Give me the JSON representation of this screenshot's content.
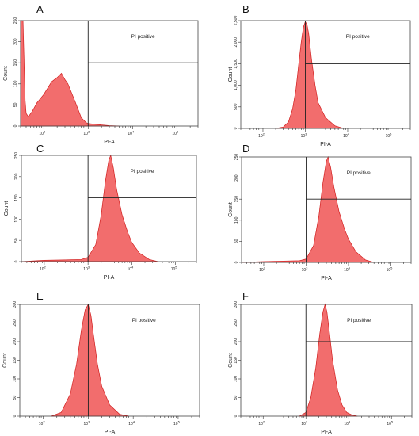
{
  "chart_data": [
    {
      "panel": "A",
      "type": "area",
      "xlabel": "PI-A",
      "ylabel": "Count",
      "xscale": "log",
      "xlim": [
        30,
        300000
      ],
      "ylim": [
        0,
        250
      ],
      "yticks": [
        "0",
        "50",
        "100",
        "150",
        "200",
        "250"
      ],
      "xticks": [
        {
          "base": "10",
          "exp": "2",
          "value": 100
        },
        {
          "base": "10",
          "exp": "3",
          "value": 1000
        },
        {
          "base": "10",
          "exp": "4",
          "value": 10000
        },
        {
          "base": "10",
          "exp": "5",
          "value": 100000
        }
      ],
      "gate_x": 1000,
      "gate_y": 150,
      "region_label": "PI positive",
      "x": [
        30,
        34,
        38,
        40,
        45,
        55,
        70,
        100,
        150,
        200,
        250,
        300,
        350,
        400,
        500,
        700,
        900,
        1000,
        1500,
        3000,
        5000
      ],
      "y": [
        250,
        250,
        60,
        30,
        22,
        35,
        55,
        75,
        105,
        115,
        125,
        110,
        100,
        85,
        60,
        20,
        8,
        6,
        4,
        1,
        0
      ]
    },
    {
      "panel": "B",
      "type": "area",
      "xlabel": "PI-A",
      "ylabel": "Count",
      "xscale": "log",
      "xlim": [
        30,
        300000
      ],
      "ylim": [
        0,
        2500
      ],
      "yticks": [
        "0",
        "500",
        "1,000",
        "1,500",
        "2,000",
        "2,500"
      ],
      "xticks": [
        {
          "base": "10",
          "exp": "2",
          "value": 100
        },
        {
          "base": "10",
          "exp": "3",
          "value": 1000
        },
        {
          "base": "10",
          "exp": "4",
          "value": 10000
        },
        {
          "base": "10",
          "exp": "5",
          "value": 100000
        }
      ],
      "gate_x": 1000,
      "gate_y": 1500,
      "region_label": "PI positive",
      "x": [
        200,
        300,
        400,
        500,
        600,
        700,
        800,
        900,
        1000,
        1100,
        1200,
        1400,
        1700,
        2000,
        3000,
        5000,
        8000
      ],
      "y": [
        0,
        30,
        150,
        450,
        900,
        1500,
        2000,
        2350,
        2480,
        2400,
        2200,
        1600,
        1000,
        600,
        250,
        60,
        0
      ]
    },
    {
      "panel": "C",
      "type": "area",
      "xlabel": "PI-A",
      "ylabel": "Count",
      "xscale": "log",
      "xlim": [
        30,
        300000
      ],
      "ylim": [
        0,
        250
      ],
      "yticks": [
        "0",
        "50",
        "100",
        "150",
        "200",
        "250"
      ],
      "xticks": [
        {
          "base": "10",
          "exp": "2",
          "value": 100
        },
        {
          "base": "10",
          "exp": "3",
          "value": 1000
        },
        {
          "base": "10",
          "exp": "4",
          "value": 10000
        },
        {
          "base": "10",
          "exp": "5",
          "value": 100000
        }
      ],
      "gate_x": 1000,
      "gate_y": 150,
      "region_label": "PI positive",
      "x": [
        30,
        100,
        300,
        700,
        1000,
        1500,
        2000,
        2500,
        3000,
        3300,
        3800,
        4500,
        6000,
        8000,
        10000,
        15000,
        25000,
        40000
      ],
      "y": [
        0,
        3,
        4,
        5,
        10,
        40,
        110,
        190,
        240,
        250,
        220,
        170,
        110,
        70,
        45,
        20,
        5,
        0
      ]
    },
    {
      "panel": "D",
      "type": "area",
      "xlabel": "PI-A",
      "ylabel": "Count",
      "xscale": "log",
      "xlim": [
        30,
        300000
      ],
      "ylim": [
        0,
        250
      ],
      "yticks": [
        "0",
        "50",
        "100",
        "150",
        "200",
        "250"
      ],
      "xticks": [
        {
          "base": "10",
          "exp": "2",
          "value": 100
        },
        {
          "base": "10",
          "exp": "3",
          "value": 1000
        },
        {
          "base": "10",
          "exp": "4",
          "value": 10000
        },
        {
          "base": "10",
          "exp": "5",
          "value": 100000
        }
      ],
      "gate_x": 1000,
      "gate_y": 150,
      "region_label": "PI positive",
      "x": [
        30,
        100,
        300,
        700,
        1000,
        1500,
        2000,
        2500,
        3000,
        3300,
        3800,
        4500,
        6000,
        8000,
        10000,
        15000,
        25000,
        40000
      ],
      "y": [
        0,
        2,
        3,
        4,
        8,
        40,
        110,
        190,
        240,
        250,
        225,
        180,
        120,
        80,
        55,
        25,
        6,
        0
      ]
    },
    {
      "panel": "E",
      "type": "area",
      "xlabel": "PI-A",
      "ylabel": "Count",
      "xscale": "log",
      "xlim": [
        30,
        300000
      ],
      "ylim": [
        0,
        300
      ],
      "yticks": [
        "0",
        "50",
        "100",
        "150",
        "200",
        "250",
        "300"
      ],
      "xticks": [
        {
          "base": "10",
          "exp": "2",
          "value": 100
        },
        {
          "base": "10",
          "exp": "3",
          "value": 1000
        },
        {
          "base": "10",
          "exp": "4",
          "value": 10000
        },
        {
          "base": "10",
          "exp": "5",
          "value": 100000
        }
      ],
      "gate_x": 1000,
      "gate_y": 250,
      "region_label": "PI positive",
      "x": [
        150,
        250,
        400,
        550,
        700,
        850,
        1000,
        1150,
        1300,
        1600,
        2000,
        3000,
        5000,
        8000
      ],
      "y": [
        0,
        10,
        60,
        140,
        230,
        285,
        300,
        270,
        220,
        140,
        80,
        30,
        5,
        0
      ]
    },
    {
      "panel": "F",
      "type": "area",
      "xlabel": "PI-A",
      "ylabel": "Count",
      "xscale": "log",
      "xlim": [
        30,
        300000
      ],
      "ylim": [
        0,
        300
      ],
      "yticks": [
        "0",
        "50",
        "100",
        "150",
        "200",
        "250",
        "300"
      ],
      "xticks": [
        {
          "base": "10",
          "exp": "2",
          "value": 100
        },
        {
          "base": "10",
          "exp": "3",
          "value": 1000
        },
        {
          "base": "10",
          "exp": "4",
          "value": 10000
        },
        {
          "base": "10",
          "exp": "5",
          "value": 100000
        }
      ],
      "gate_x": 1000,
      "gate_y": 200,
      "region_label": "PI positive",
      "x": [
        700,
        1000,
        1300,
        1700,
        2100,
        2500,
        2800,
        3100,
        3500,
        4200,
        5500,
        7000,
        9000,
        12000,
        16000
      ],
      "y": [
        0,
        10,
        50,
        130,
        220,
        280,
        300,
        280,
        230,
        150,
        70,
        30,
        10,
        3,
        0
      ]
    }
  ]
}
